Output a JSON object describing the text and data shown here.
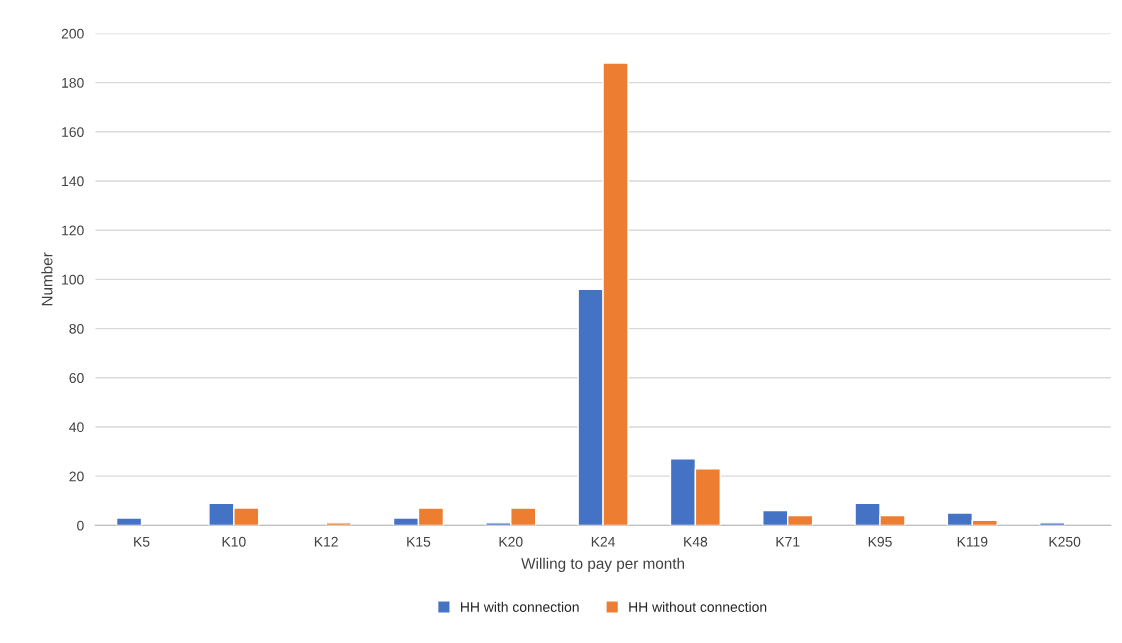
{
  "chart_data": {
    "type": "bar",
    "xlabel": "Willing to pay per month",
    "ylabel": "Number",
    "categories": [
      "K5",
      "K10",
      "K12",
      "K15",
      "K20",
      "K24",
      "K48",
      "K71",
      "K95",
      "K119",
      "K250"
    ],
    "series": [
      {
        "name": "HH with connection",
        "color": "#4472c4",
        "values": [
          3,
          9,
          null,
          3,
          1,
          96,
          27,
          6,
          9,
          5,
          1
        ]
      },
      {
        "name": "HH without connection",
        "color": "#ed7d31",
        "values": [
          null,
          7,
          1,
          7,
          7,
          188,
          23,
          4,
          4,
          2,
          null
        ]
      }
    ],
    "ylim": [
      0,
      200
    ],
    "yticks": [
      0,
      20,
      40,
      60,
      80,
      100,
      120,
      140,
      160,
      180,
      200
    ],
    "grid": "y",
    "legend": "bottom"
  }
}
